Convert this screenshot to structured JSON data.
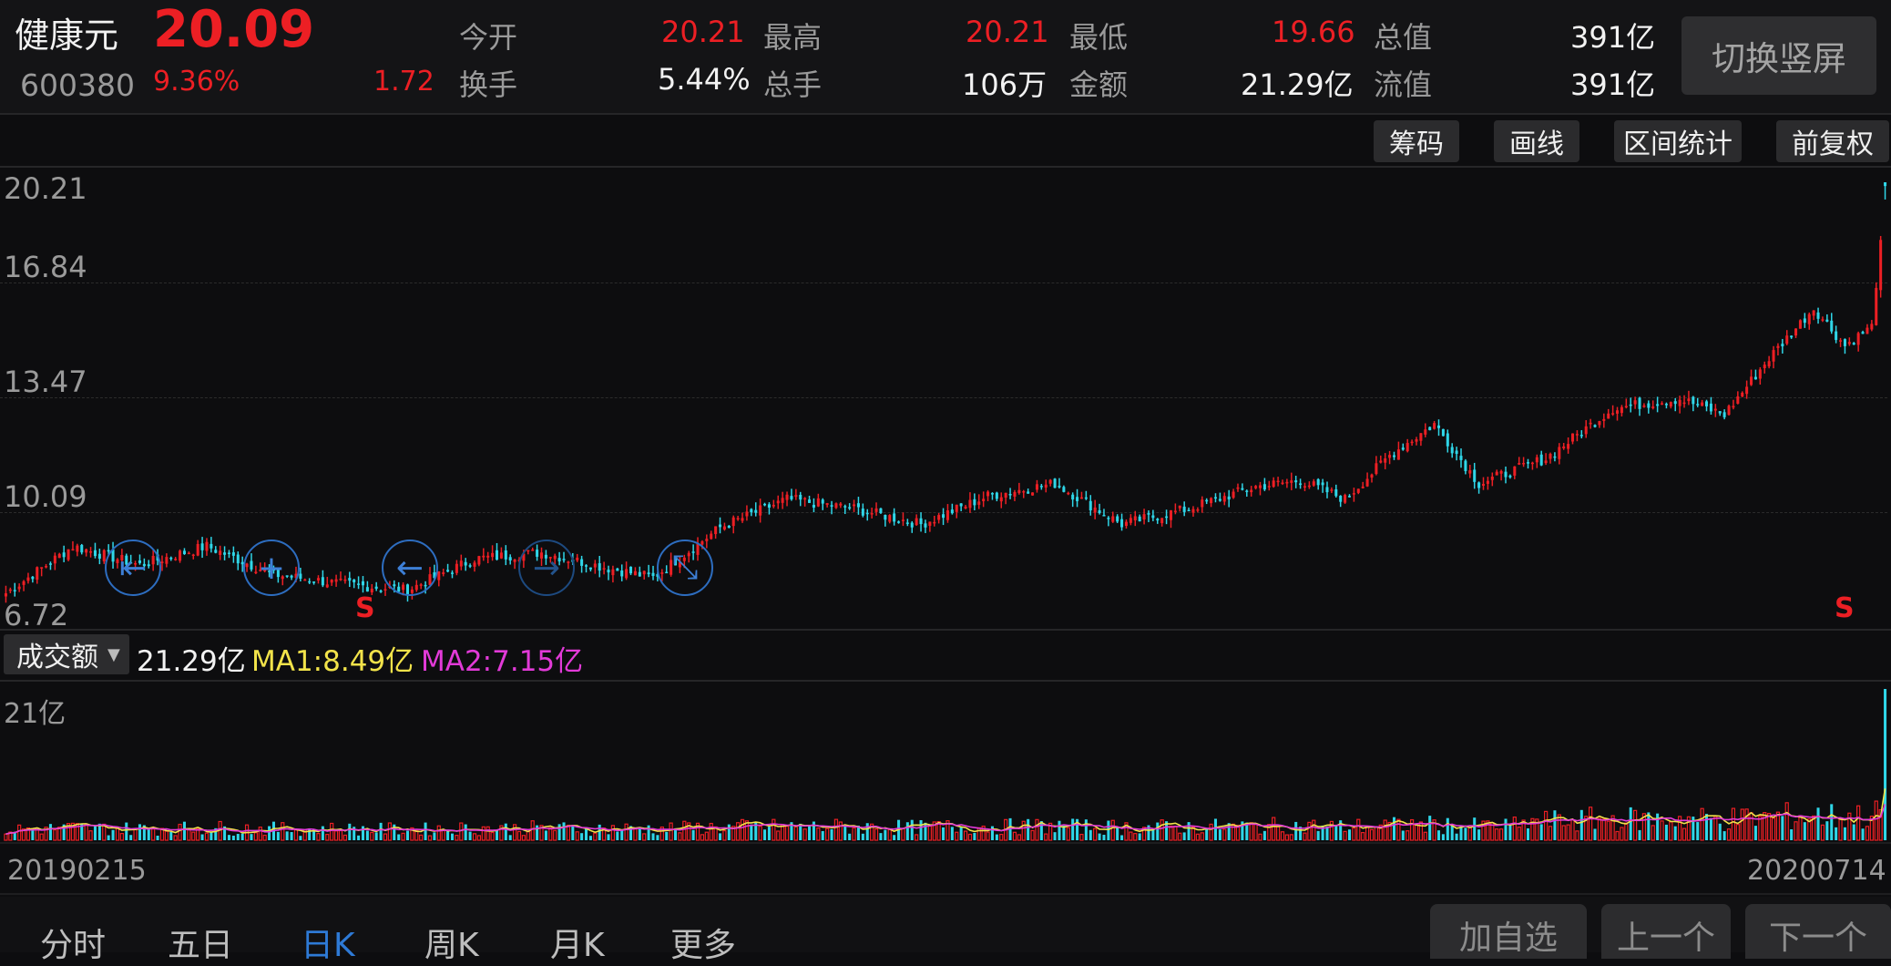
{
  "stock": {
    "name": "健康元",
    "price": "20.09",
    "code": "600380",
    "change_pct": "9.36%",
    "change": "1.72"
  },
  "quote": {
    "open_label": "今开",
    "open_value": "20.21",
    "high_label": "最高",
    "high_value": "20.21",
    "low_label": "最低",
    "low_value": "19.66",
    "total_cap_label": "总值",
    "total_cap_value": "391亿",
    "turnover_label": "换手",
    "turnover_value": "5.44%",
    "volume_label": "总手",
    "volume_value": "106万",
    "amount_label": "金额",
    "amount_value": "21.29亿",
    "float_cap_label": "流值",
    "float_cap_value": "391亿"
  },
  "switch_button": "切换竖屏",
  "toolbar": {
    "chips": "筹码",
    "draw": "画线",
    "range_stats": "区间统计",
    "adjust": "前复权"
  },
  "price_axis": [
    "20.21",
    "16.84",
    "13.47",
    "10.09",
    "6.72"
  ],
  "markers": {
    "sell_left": "S",
    "sell_right": "S"
  },
  "volume_panel": {
    "selector_label": "成交额",
    "current": "21.29亿",
    "ma1": "MA1:8.49亿",
    "ma2": "MA2:7.15亿",
    "axis_max": "21亿"
  },
  "dates": {
    "start": "20190215",
    "end": "20200714"
  },
  "tabs": [
    "分时",
    "五日",
    "日K",
    "周K",
    "月K",
    "更多"
  ],
  "active_tab": "日K",
  "buttons": {
    "add_watch": "加自选",
    "prev": "上一个",
    "next": "下一个"
  },
  "icons": {
    "first": "jump-to-start-icon",
    "zoom_in": "zoom-in-icon",
    "left": "arrow-left-icon",
    "right": "arrow-right-icon",
    "shrink": "shrink-icon"
  },
  "colors": {
    "up": "#ec1f24",
    "down": "#2fd6e8",
    "ma1": "#f2e34a",
    "ma2": "#e23ad8",
    "active_tab": "#2e7ad6"
  },
  "chart_data": {
    "type": "candlestick",
    "ylim": [
      6.72,
      20.21
    ],
    "start_date": "20190215",
    "end_date": "20200714",
    "anchors_close": [
      [
        0,
        7.1
      ],
      [
        15,
        8.6
      ],
      [
        30,
        8.0
      ],
      [
        45,
        8.6
      ],
      [
        60,
        7.7
      ],
      [
        75,
        7.4
      ],
      [
        90,
        7.2
      ],
      [
        105,
        8.2
      ],
      [
        120,
        8.4
      ],
      [
        135,
        7.9
      ],
      [
        145,
        7.6
      ],
      [
        160,
        9.2
      ],
      [
        175,
        10.1
      ],
      [
        190,
        9.8
      ],
      [
        205,
        9.3
      ],
      [
        220,
        10.2
      ],
      [
        235,
        10.6
      ],
      [
        250,
        9.3
      ],
      [
        265,
        9.8
      ],
      [
        280,
        10.5
      ],
      [
        290,
        10.7
      ],
      [
        300,
        10.1
      ],
      [
        310,
        11.5
      ],
      [
        320,
        12.5
      ],
      [
        330,
        10.6
      ],
      [
        345,
        11.4
      ],
      [
        360,
        13.0
      ],
      [
        375,
        13.3
      ],
      [
        385,
        12.8
      ],
      [
        395,
        14.6
      ],
      [
        405,
        16.2
      ],
      [
        412,
        15.0
      ],
      [
        418,
        15.6
      ],
      [
        420,
        18.37
      ]
    ],
    "last_candle": {
      "open": 20.21,
      "high": 20.21,
      "low": 19.66,
      "close": 20.09
    },
    "volume_ylim": [
      0,
      21.29
    ],
    "volume_last": 21.29,
    "ma1_last": 8.49,
    "ma2_last": 7.15
  }
}
